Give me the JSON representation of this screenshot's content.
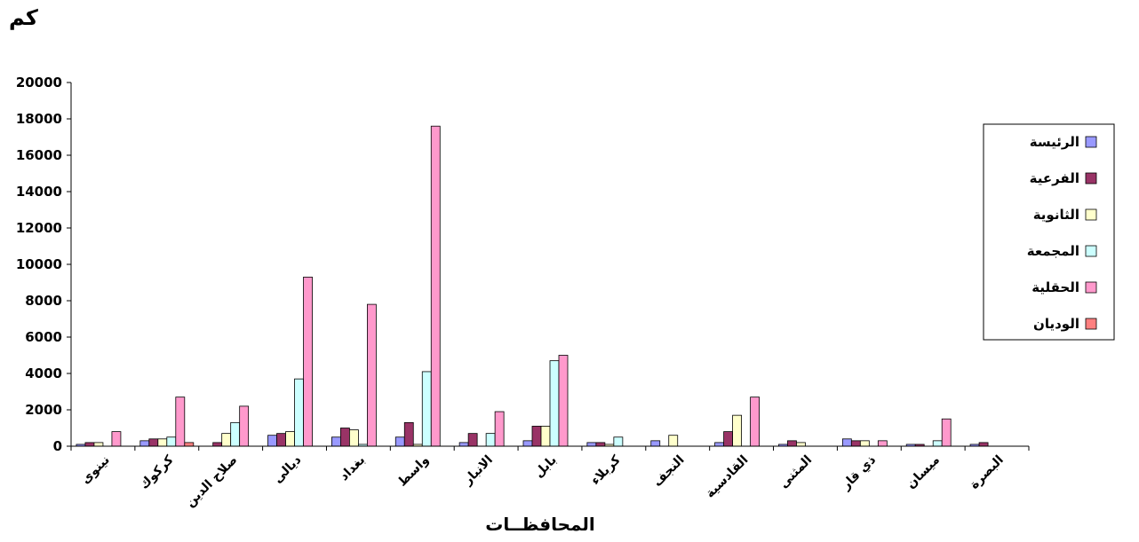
{
  "chart_data": {
    "type": "bar",
    "unit_label": "كم",
    "title": "",
    "xlabel": "المحافظــات",
    "ylabel": "",
    "ylim": [
      0,
      20000
    ],
    "yticks": [
      0,
      2000,
      4000,
      6000,
      8000,
      10000,
      12000,
      14000,
      16000,
      18000,
      20000
    ],
    "legend_position": "right",
    "categories": [
      "نينوى",
      "كركوك",
      "صلاح الدين",
      "ديالى",
      "بغداد",
      "واسط",
      "الانبار",
      "بابل",
      "كربلاء",
      "النجف",
      "القادسية",
      "المثنى",
      "ذي قار",
      "ميسان",
      "البصرة"
    ],
    "series": [
      {
        "name": "الرئيسة",
        "color": "#9999FF",
        "values": [
          100,
          300,
          0,
          600,
          500,
          500,
          200,
          300,
          200,
          300,
          200,
          100,
          400,
          100,
          100
        ]
      },
      {
        "name": "الفرعية",
        "color": "#993366",
        "values": [
          200,
          400,
          200,
          700,
          1000,
          1300,
          700,
          1100,
          200,
          0,
          800,
          300,
          300,
          100,
          200
        ]
      },
      {
        "name": "الثانوية",
        "color": "#FFFFCC",
        "values": [
          200,
          400,
          700,
          800,
          900,
          100,
          0,
          1100,
          100,
          600,
          1700,
          200,
          300,
          0,
          0
        ]
      },
      {
        "name": "المجمعة",
        "color": "#CCFFFF",
        "values": [
          0,
          500,
          1300,
          3700,
          100,
          4100,
          700,
          4700,
          500,
          0,
          0,
          0,
          0,
          300,
          0
        ]
      },
      {
        "name": "الحقلية",
        "color": "#FF99CC",
        "values": [
          800,
          2700,
          2200,
          9300,
          7800,
          17600,
          1900,
          5000,
          0,
          0,
          2700,
          0,
          300,
          1500,
          0
        ]
      },
      {
        "name": "الوديان",
        "color": "#FF8080",
        "values": [
          0,
          200,
          0,
          0,
          0,
          0,
          0,
          0,
          0,
          0,
          0,
          0,
          0,
          0,
          0
        ]
      }
    ]
  }
}
